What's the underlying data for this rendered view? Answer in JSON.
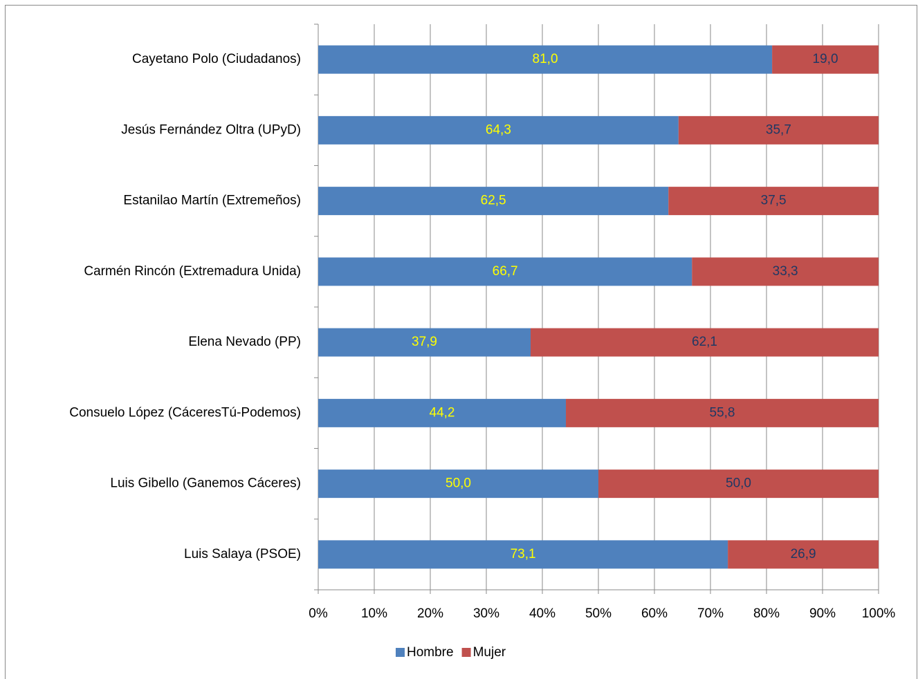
{
  "chart_data": {
    "type": "stacked_bar_horizontal",
    "categories": [
      "Cayetano Polo (Ciudadanos)",
      "Jesús Fernández Oltra (UPyD)",
      "Estanilao Martín (Extremeños)",
      "Carmén Rincón (Extremadura Unida)",
      "Elena Nevado (PP)",
      "Consuelo López (CáceresTú-Podemos)",
      "Luis Gibello (Ganemos Cáceres)",
      "Luis Salaya (PSOE)"
    ],
    "series": [
      {
        "name": "Hombre",
        "color": "#4f81bd",
        "label_color": "#ffff00",
        "values": [
          81.0,
          64.3,
          62.5,
          66.7,
          37.9,
          44.2,
          50.0,
          73.1
        ],
        "value_labels": [
          "81,0",
          "64,3",
          "62,5",
          "66,7",
          "37,9",
          "44,2",
          "50,0",
          "73,1"
        ]
      },
      {
        "name": "Mujer",
        "color": "#c0504d",
        "label_color": "#1f3864",
        "values": [
          19.0,
          35.7,
          37.5,
          33.3,
          62.1,
          55.8,
          50.0,
          26.9
        ],
        "value_labels": [
          "19,0",
          "35,7",
          "37,5",
          "33,3",
          "62,1",
          "55,8",
          "50,0",
          "26,9"
        ]
      }
    ],
    "xlim": [
      0,
      100
    ],
    "xticks": [
      {
        "value": 0,
        "label": "0%"
      },
      {
        "value": 10,
        "label": "10%"
      },
      {
        "value": 20,
        "label": "20%"
      },
      {
        "value": 30,
        "label": "30%"
      },
      {
        "value": 40,
        "label": "40%"
      },
      {
        "value": 50,
        "label": "50%"
      },
      {
        "value": 60,
        "label": "60%"
      },
      {
        "value": 70,
        "label": "70%"
      },
      {
        "value": 80,
        "label": "80%"
      },
      {
        "value": 90,
        "label": "90%"
      },
      {
        "value": 100,
        "label": "100%"
      }
    ],
    "grid": true,
    "legend": "bottom"
  }
}
